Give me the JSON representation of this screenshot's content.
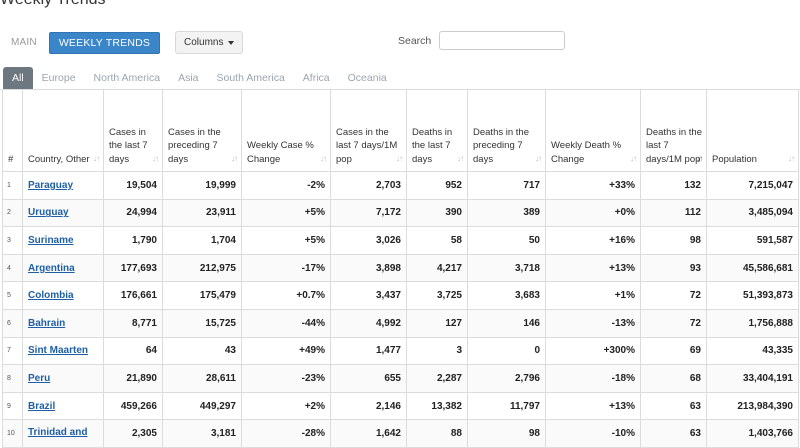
{
  "title": "Weekly Trends",
  "tabs": {
    "main": "MAIN",
    "weekly": "WEEKLY TRENDS"
  },
  "columns_button": "Columns",
  "search": {
    "label": "Search",
    "value": ""
  },
  "regions": [
    "All",
    "Europe",
    "North America",
    "Asia",
    "South America",
    "Africa",
    "Oceania"
  ],
  "headers": [
    "#",
    "Country, Other",
    "Cases in the last 7 days",
    "Cases in the preceding 7 days",
    "Weekly Case % Change",
    "Cases in the last 7 days/1M pop",
    "Deaths in the last 7 days",
    "Deaths in the preceding 7 days",
    "Weekly Death % Change",
    "Deaths in the last 7 days/1M pop",
    "Population"
  ],
  "rows": [
    [
      "1",
      "Paraguay",
      "19,504",
      "19,999",
      "-2%",
      "2,703",
      "952",
      "717",
      "+33%",
      "132",
      "7,215,047"
    ],
    [
      "2",
      "Uruguay",
      "24,994",
      "23,911",
      "+5%",
      "7,172",
      "390",
      "389",
      "+0%",
      "112",
      "3,485,094"
    ],
    [
      "3",
      "Suriname",
      "1,790",
      "1,704",
      "+5%",
      "3,026",
      "58",
      "50",
      "+16%",
      "98",
      "591,587"
    ],
    [
      "4",
      "Argentina",
      "177,693",
      "212,975",
      "-17%",
      "3,898",
      "4,217",
      "3,718",
      "+13%",
      "93",
      "45,586,681"
    ],
    [
      "5",
      "Colombia",
      "176,661",
      "175,479",
      "+0.7%",
      "3,437",
      "3,725",
      "3,683",
      "+1%",
      "72",
      "51,393,873"
    ],
    [
      "6",
      "Bahrain",
      "8,771",
      "15,725",
      "-44%",
      "4,992",
      "127",
      "146",
      "-13%",
      "72",
      "1,756,888"
    ],
    [
      "7",
      "Sint Maarten",
      "64",
      "43",
      "+49%",
      "1,477",
      "3",
      "0",
      "+300%",
      "69",
      "43,335"
    ],
    [
      "8",
      "Peru",
      "21,890",
      "28,611",
      "-23%",
      "655",
      "2,287",
      "2,796",
      "-18%",
      "68",
      "33,404,191"
    ],
    [
      "9",
      "Brazil",
      "459,266",
      "449,297",
      "+2%",
      "2,146",
      "13,382",
      "11,797",
      "+13%",
      "63",
      "213,984,390"
    ],
    [
      "10",
      "Trinidad and",
      "2,305",
      "3,181",
      "-28%",
      "1,642",
      "88",
      "98",
      "-10%",
      "63",
      "1,403,766"
    ]
  ]
}
